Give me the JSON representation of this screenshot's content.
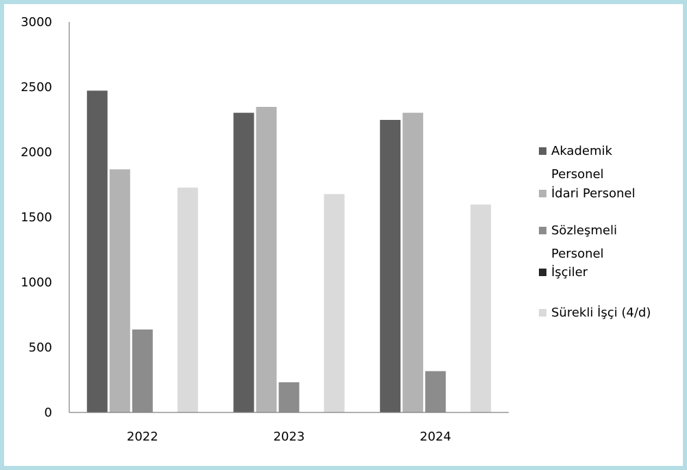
{
  "chart_data": {
    "type": "bar",
    "title": "",
    "xlabel": "",
    "ylabel": "",
    "categories": [
      "2022",
      "2023",
      "2024"
    ],
    "ylim": [
      0,
      3000
    ],
    "yticks": [
      0,
      500,
      1000,
      1500,
      2000,
      2500,
      3000
    ],
    "grid": false,
    "legend_position": "right",
    "series": [
      {
        "name": "Akademik Personel",
        "color": "#5e5e5e",
        "values": [
          2475,
          2305,
          2250
        ]
      },
      {
        "name": "İdari Personel",
        "color": "#b3b3b3",
        "values": [
          1870,
          2350,
          2305
        ]
      },
      {
        "name": "Sözleşmeli Personel",
        "color": "#8c8c8c",
        "values": [
          640,
          235,
          320
        ]
      },
      {
        "name": "İşçiler",
        "color": "#262626",
        "values": [
          0,
          0,
          0
        ]
      },
      {
        "name": "Sürekli İşçi (4/d)",
        "color": "#dadada",
        "values": [
          1730,
          1680,
          1600
        ]
      }
    ]
  }
}
